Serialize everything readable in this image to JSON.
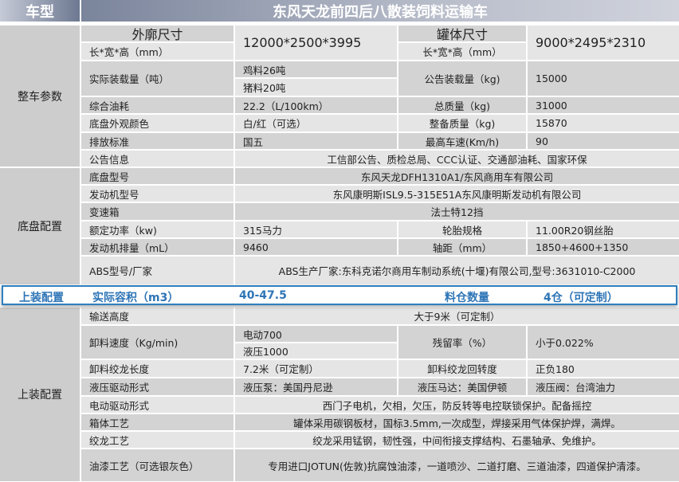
{
  "header": {
    "label": "车型",
    "title": "东风天龙前四后八散装饲料运输车"
  },
  "groups": {
    "whole": "整车参数",
    "chassis": "底盘配置",
    "body": "上装配置"
  },
  "whole": {
    "outer_label": "外廓尺寸",
    "outer_unit": "长*宽*高（mm）",
    "outer_value": "12000*2500*3995",
    "tank_label": "罐体尺寸",
    "tank_unit": "长*宽*高（mm）",
    "tank_value": "9000*2495*2310",
    "load_label": "实际装载量（吨）",
    "load_chicken": "鸡料26吨",
    "load_pig": "猪料20吨",
    "notice_load_label": "公告装载量（kg)",
    "notice_load_value": "15000",
    "fuel_label": "综合油耗",
    "fuel_value": "22.2（L/100km）",
    "total_mass_label": "总质量（kg)",
    "total_mass_value": "31000",
    "color_label": "底盘外观颜色",
    "color_value": "白/红（可选）",
    "curb_mass_label": "整备质量（kg)",
    "curb_mass_value": "15870",
    "emission_label": "排放标准",
    "emission_value": "国五",
    "speed_label": "最高车速(Km/h)",
    "speed_value": "90",
    "notice_label": "公告信息",
    "notice_value": "工信部公告、质检总局、CCC认证、交通部油耗、国家环保"
  },
  "chassis": {
    "model_label": "底盘型号",
    "model_value": "东风天龙DFH1310A1/东风商用车有限公司",
    "engine_label": "发动机型号",
    "engine_value": "东风康明斯ISL9.5-315E51A东风康明斯发动机有限公司",
    "gearbox_label": "变速箱",
    "gearbox_value": "法士特12挡",
    "power_label": "额定功率（kw)",
    "power_value": "315马力",
    "tire_label": "轮胎规格",
    "tire_value": "11.00R20钢丝胎",
    "displacement_label": "发动机排量（mL）",
    "displacement_value": "9460",
    "wheelbase_label": "轴距（mm）",
    "wheelbase_value": "1850+4600+1350",
    "abs_label": "ABS型号/厂家",
    "abs_value": "ABS生产厂家:东科克诺尔商用车制动系统(十堰)有限公司,型号:3631010-C2000"
  },
  "highlight": {
    "group": "上装配置",
    "volume_label": "实际容积（m3）",
    "volume_value": "40-47.5",
    "bins_label": "料仓数量",
    "bins_value": "4仓（可定制）",
    "accent": "#2e75b6"
  },
  "body": {
    "height_label": "输送高度",
    "height_value": "大于9米（可定制）",
    "speed_label": "卸料速度（Kg/min)",
    "speed_electric": "电动700",
    "speed_hydraulic": "液压1000",
    "residue_label": "残留率（%）",
    "residue_value": "小于0.022%",
    "auger_len_label": "卸料绞龙长度",
    "auger_len_value": "7.2米（可定制）",
    "auger_rot_label": "卸料绞龙回转度",
    "auger_rot_value": "正负180",
    "hyd_label": "液压驱动形式",
    "hyd_pump": "液压泵：美国丹尼逊",
    "hyd_motor": "液压马达：美国伊顿",
    "hyd_valve": "液压阀：台湾油力",
    "elec_label": "电动驱动形式",
    "elec_value": "西门子电机，欠相，欠压，防反转等电控联锁保护。配备摇控",
    "box_label": "箱体工艺",
    "box_value": "罐体采用碳钢板材，国标3.5mm,一次成型，焊接采用气体保护焊，满焊。",
    "auger_label": "绞龙工艺",
    "auger_value": "绞龙采用锰钢，韧性强，中间衔接支撑结构、石墨轴承、免维护。",
    "paint_label": "油漆工艺（可选银灰色）",
    "paint_value": "专用进口JOTUN(佐敦)抗腐蚀油漆，一道喷沙、二道打磨、三道油漆，四道保护清漆。"
  }
}
